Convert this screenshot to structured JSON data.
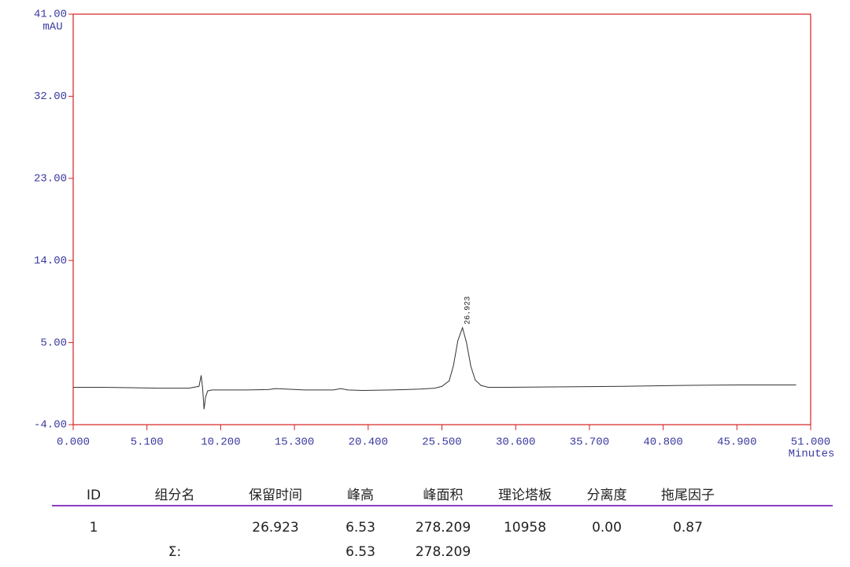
{
  "chart_data": {
    "type": "line",
    "y_label": "mAU",
    "x_label": "Minutes",
    "peak_label": "26.923",
    "color": "#333333",
    "frame_color": "#d42020",
    "tick_color": "#3a3aa0",
    "xlim": [
      0,
      51
    ],
    "ylim": [
      -4,
      41
    ],
    "xticks": [
      {
        "value": 0,
        "label": "0.000"
      },
      {
        "value": 5.1,
        "label": "5.100"
      },
      {
        "value": 10.2,
        "label": "10.200"
      },
      {
        "value": 15.3,
        "label": "15.300"
      },
      {
        "value": 20.4,
        "label": "20.400"
      },
      {
        "value": 25.5,
        "label": "25.500"
      },
      {
        "value": 30.6,
        "label": "30.600"
      },
      {
        "value": 35.7,
        "label": "35.700"
      },
      {
        "value": 40.8,
        "label": "40.800"
      },
      {
        "value": 45.9,
        "label": "45.900"
      },
      {
        "value": 51,
        "label": "51.000"
      }
    ],
    "yticks": [
      {
        "value": -4,
        "label": "-4.00"
      },
      {
        "value": 5,
        "label": "5.00"
      },
      {
        "value": 14,
        "label": "14.00"
      },
      {
        "value": 23,
        "label": "23.00"
      },
      {
        "value": 32,
        "label": "32.00"
      },
      {
        "value": 41,
        "label": "41.00"
      }
    ],
    "x": [
      0,
      2,
      4,
      6,
      8,
      8.7,
      8.85,
      8.95,
      9.05,
      9.15,
      9.3,
      9.6,
      10,
      12,
      13.5,
      14,
      16,
      18,
      18.5,
      19,
      20,
      22,
      24,
      25,
      25.5,
      26,
      26.3,
      26.6,
      26.923,
      27.2,
      27.5,
      27.8,
      28.2,
      28.7,
      30,
      34,
      38,
      42,
      46,
      50
    ],
    "values": [
      0.1,
      0.1,
      0.05,
      0.0,
      0.0,
      0.2,
      1.4,
      0.0,
      -2.3,
      -1.0,
      -0.3,
      -0.2,
      -0.2,
      -0.2,
      -0.15,
      -0.05,
      -0.2,
      -0.2,
      -0.05,
      -0.2,
      -0.25,
      -0.2,
      -0.1,
      0.0,
      0.2,
      0.8,
      2.5,
      5.2,
      6.63,
      5.0,
      2.4,
      0.9,
      0.3,
      0.1,
      0.1,
      0.15,
      0.2,
      0.3,
      0.35,
      0.35
    ]
  },
  "table": {
    "header": [
      "ID",
      "组分名",
      "保留时间",
      "峰高",
      "峰面积",
      "理论塔板",
      "分离度",
      "拖尾因子"
    ],
    "rows": [
      [
        "1",
        null,
        "26.923",
        "6.53",
        "278.209",
        "10958",
        "0.00",
        "0.87"
      ]
    ],
    "totals": [
      null,
      "Σ:",
      null,
      "6.53",
      "278.209",
      null,
      null,
      null
    ]
  }
}
